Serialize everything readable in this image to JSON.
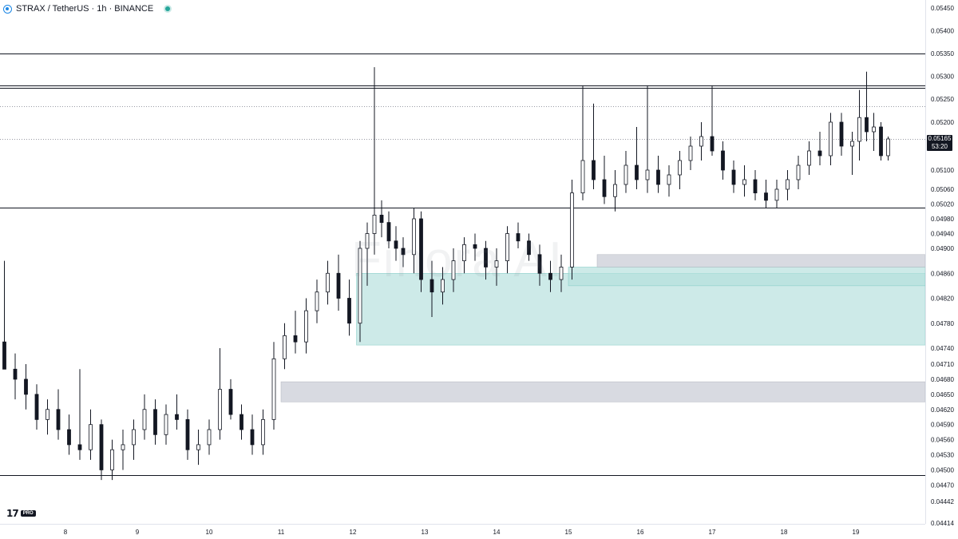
{
  "header": {
    "title": "STRAX / TetherUS · 1h · BINANCE"
  },
  "watermark": "Finora AI",
  "logo": {
    "mark": "17",
    "badge": "PRO"
  },
  "price_tag": {
    "price": "0.05165",
    "countdown": "53:20"
  },
  "colors": {
    "up": "#ffffff",
    "down": "#131722",
    "wick": "#131722",
    "zone_green": "#b2dfdb",
    "zone_gray": "#d1d4dc",
    "level_line": "#131722",
    "dotted": "#787b86"
  },
  "chart_data": {
    "type": "candlestick",
    "title": "STRAX / TetherUS · 1h · BINANCE",
    "xlabel": "",
    "ylabel": "",
    "x_ticks": [
      "8",
      "9",
      "10",
      "11",
      "12",
      "13",
      "14",
      "15",
      "16",
      "17",
      "18",
      "19"
    ],
    "y_ticks": [
      "0.05450",
      "0.05400",
      "0.05350",
      "0.05300",
      "0.05250",
      "0.05200",
      "0.05165",
      "0.05100",
      "0.05060",
      "0.05020",
      "0.04980",
      "0.04940",
      "0.04900",
      "0.04860",
      "0.04820",
      "0.04780",
      "0.04740",
      "0.04710",
      "0.04680",
      "0.04650",
      "0.04620",
      "0.04590",
      "0.04560",
      "0.04530",
      "0.04500",
      "0.04470",
      "0.04442",
      "0.04414"
    ],
    "last_price": 0.05165,
    "horizontal_levels": [
      0.0535,
      0.0528,
      0.05275,
      0.0501,
      0.0449
    ],
    "dotted_levels": [
      0.05235,
      0.05165
    ],
    "zones": [
      {
        "color": "green",
        "from_day": 12.05,
        "low": 0.04745,
        "high": 0.0486
      },
      {
        "color": "green",
        "from_day": 15.0,
        "low": 0.0484,
        "high": 0.0487
      },
      {
        "color": "gray",
        "from_day": 15.4,
        "low": 0.0487,
        "high": 0.0489
      },
      {
        "color": "gray",
        "from_day": 11.0,
        "low": 0.04635,
        "high": 0.04675
      }
    ],
    "candles": [
      [
        7.15,
        0.0475,
        0.0488,
        0.047,
        0.047
      ],
      [
        7.3,
        0.047,
        0.0473,
        0.0464,
        0.0468
      ],
      [
        7.45,
        0.0468,
        0.0471,
        0.0462,
        0.0465
      ],
      [
        7.6,
        0.0465,
        0.0467,
        0.0458,
        0.046
      ],
      [
        7.75,
        0.046,
        0.0464,
        0.0457,
        0.0462
      ],
      [
        7.9,
        0.0462,
        0.0466,
        0.0456,
        0.0458
      ],
      [
        8.05,
        0.0458,
        0.0461,
        0.0453,
        0.0455
      ],
      [
        8.2,
        0.0455,
        0.047,
        0.0452,
        0.0454
      ],
      [
        8.35,
        0.0454,
        0.0462,
        0.0452,
        0.0459
      ],
      [
        8.5,
        0.0459,
        0.046,
        0.0448,
        0.045
      ],
      [
        8.65,
        0.045,
        0.0456,
        0.0448,
        0.0454
      ],
      [
        8.8,
        0.0454,
        0.0458,
        0.045,
        0.0455
      ],
      [
        8.95,
        0.0455,
        0.046,
        0.0452,
        0.0458
      ],
      [
        9.1,
        0.0458,
        0.0465,
        0.0456,
        0.0462
      ],
      [
        9.25,
        0.0462,
        0.0464,
        0.0455,
        0.0457
      ],
      [
        9.4,
        0.0457,
        0.0463,
        0.0455,
        0.0461
      ],
      [
        9.55,
        0.0461,
        0.0465,
        0.0458,
        0.046
      ],
      [
        9.7,
        0.046,
        0.0462,
        0.0452,
        0.0454
      ],
      [
        9.85,
        0.0454,
        0.0458,
        0.0451,
        0.0455
      ],
      [
        10.0,
        0.0455,
        0.046,
        0.0453,
        0.0458
      ],
      [
        10.15,
        0.0458,
        0.0474,
        0.0456,
        0.0466
      ],
      [
        10.3,
        0.0466,
        0.0468,
        0.046,
        0.0461
      ],
      [
        10.45,
        0.0461,
        0.0463,
        0.0456,
        0.0458
      ],
      [
        10.6,
        0.0458,
        0.0461,
        0.0453,
        0.0455
      ],
      [
        10.75,
        0.0455,
        0.0462,
        0.0453,
        0.046
      ],
      [
        10.9,
        0.046,
        0.0475,
        0.0458,
        0.0472
      ],
      [
        11.05,
        0.0472,
        0.0478,
        0.047,
        0.0476
      ],
      [
        11.2,
        0.0476,
        0.048,
        0.0473,
        0.0475
      ],
      [
        11.35,
        0.0475,
        0.0482,
        0.0473,
        0.048
      ],
      [
        11.5,
        0.048,
        0.0485,
        0.0478,
        0.0483
      ],
      [
        11.65,
        0.0483,
        0.0488,
        0.0481,
        0.0486
      ],
      [
        11.8,
        0.0486,
        0.0489,
        0.048,
        0.0482
      ],
      [
        11.95,
        0.0482,
        0.0485,
        0.0476,
        0.0478
      ],
      [
        12.1,
        0.0478,
        0.0492,
        0.0475,
        0.049
      ],
      [
        12.2,
        0.049,
        0.0497,
        0.0484,
        0.0494
      ],
      [
        12.3,
        0.0494,
        0.0532,
        0.0489,
        0.0499
      ],
      [
        12.4,
        0.0499,
        0.0503,
        0.0493,
        0.0497
      ],
      [
        12.5,
        0.0497,
        0.05,
        0.049,
        0.0492
      ],
      [
        12.6,
        0.0492,
        0.0496,
        0.0488,
        0.049
      ],
      [
        12.7,
        0.049,
        0.0493,
        0.0487,
        0.0489
      ],
      [
        12.85,
        0.0489,
        0.0501,
        0.0486,
        0.0498
      ],
      [
        12.95,
        0.0498,
        0.05,
        0.0483,
        0.0485
      ],
      [
        13.1,
        0.0485,
        0.0488,
        0.0479,
        0.0483
      ],
      [
        13.25,
        0.0483,
        0.0487,
        0.0481,
        0.0485
      ],
      [
        13.4,
        0.0485,
        0.049,
        0.0483,
        0.0488
      ],
      [
        13.55,
        0.0488,
        0.0493,
        0.0486,
        0.0491
      ],
      [
        13.7,
        0.0491,
        0.0494,
        0.0488,
        0.049
      ],
      [
        13.85,
        0.049,
        0.0492,
        0.0485,
        0.0487
      ],
      [
        14.0,
        0.0487,
        0.049,
        0.0484,
        0.0488
      ],
      [
        14.15,
        0.0488,
        0.0496,
        0.0486,
        0.0494
      ],
      [
        14.3,
        0.0494,
        0.0497,
        0.049,
        0.0492
      ],
      [
        14.45,
        0.0492,
        0.0494,
        0.0488,
        0.0489
      ],
      [
        14.6,
        0.0489,
        0.0491,
        0.0484,
        0.0486
      ],
      [
        14.75,
        0.0486,
        0.0488,
        0.0483,
        0.0485
      ],
      [
        14.9,
        0.0485,
        0.0489,
        0.0483,
        0.0487
      ],
      [
        15.05,
        0.0487,
        0.0508,
        0.0485,
        0.0505
      ],
      [
        15.2,
        0.0505,
        0.0528,
        0.0503,
        0.0512
      ],
      [
        15.35,
        0.0512,
        0.0524,
        0.0506,
        0.0508
      ],
      [
        15.5,
        0.0508,
        0.0513,
        0.0502,
        0.0504
      ],
      [
        15.65,
        0.0504,
        0.051,
        0.05,
        0.0507
      ],
      [
        15.8,
        0.0507,
        0.0514,
        0.0505,
        0.0511
      ],
      [
        15.95,
        0.0511,
        0.0519,
        0.0506,
        0.0508
      ],
      [
        16.1,
        0.0508,
        0.0528,
        0.0505,
        0.051
      ],
      [
        16.25,
        0.051,
        0.0513,
        0.0505,
        0.0507
      ],
      [
        16.4,
        0.0507,
        0.0511,
        0.0504,
        0.0509
      ],
      [
        16.55,
        0.0509,
        0.0514,
        0.0506,
        0.0512
      ],
      [
        16.7,
        0.0512,
        0.0517,
        0.051,
        0.0515
      ],
      [
        16.85,
        0.0515,
        0.052,
        0.0512,
        0.0517
      ],
      [
        17.0,
        0.0517,
        0.0528,
        0.0513,
        0.0514
      ],
      [
        17.15,
        0.0514,
        0.0516,
        0.0508,
        0.051
      ],
      [
        17.3,
        0.051,
        0.0512,
        0.0505,
        0.0507
      ],
      [
        17.45,
        0.0507,
        0.0511,
        0.0504,
        0.0508
      ],
      [
        17.6,
        0.0508,
        0.051,
        0.0503,
        0.0505
      ],
      [
        17.75,
        0.0505,
        0.0508,
        0.0501,
        0.0503
      ],
      [
        17.9,
        0.0503,
        0.0508,
        0.0501,
        0.0506
      ],
      [
        18.05,
        0.0506,
        0.051,
        0.0503,
        0.0508
      ],
      [
        18.2,
        0.0508,
        0.0513,
        0.0506,
        0.0511
      ],
      [
        18.35,
        0.0511,
        0.0516,
        0.0509,
        0.0514
      ],
      [
        18.5,
        0.0514,
        0.0518,
        0.0511,
        0.0513
      ],
      [
        18.65,
        0.0513,
        0.0522,
        0.0511,
        0.052
      ],
      [
        18.8,
        0.052,
        0.0522,
        0.0513,
        0.0515
      ],
      [
        18.95,
        0.0515,
        0.0518,
        0.0509,
        0.0516
      ],
      [
        19.05,
        0.0516,
        0.0527,
        0.0512,
        0.0521
      ],
      [
        19.15,
        0.0521,
        0.0531,
        0.0516,
        0.0518
      ],
      [
        19.25,
        0.0518,
        0.0522,
        0.0514,
        0.0519
      ],
      [
        19.35,
        0.0519,
        0.052,
        0.0512,
        0.0513
      ],
      [
        19.45,
        0.0513,
        0.0517,
        0.0512,
        0.05165
      ]
    ]
  }
}
